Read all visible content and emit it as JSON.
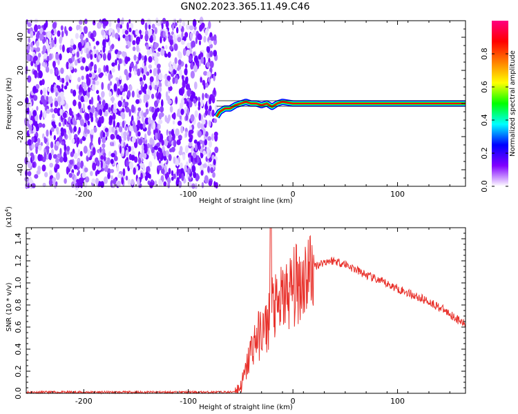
{
  "title": "GN02.2023.365.11.49.C46",
  "chart_data": [
    {
      "type": "heatmap",
      "title": "GN02.2023.365.11.49.C46",
      "xlabel": "Height of straight line (km)",
      "ylabel": "Frequency (Hz)",
      "xlim": [
        -255,
        165
      ],
      "ylim": [
        -50,
        50
      ],
      "xticks": [
        -200,
        -100,
        0,
        100
      ],
      "yticks": [
        -40,
        -20,
        0,
        20,
        40
      ],
      "colorbar": {
        "label": "Normalized spectral amplitude",
        "range": [
          0.0,
          1.0
        ],
        "ticks": [
          0.0,
          0.2,
          0.4,
          0.6,
          0.8
        ],
        "colors": [
          "#ffffff",
          "#8000ff",
          "#0000ff",
          "#00ffff",
          "#00ff00",
          "#ffff00",
          "#ff8000",
          "#ff0000",
          "#ff0080"
        ]
      },
      "noise_region_x": [
        -255,
        -73
      ],
      "signal_line": {
        "y": 0,
        "x_start": -73,
        "x_end": 165,
        "points": [
          [
            -73,
            -8
          ],
          [
            -70,
            -5
          ],
          [
            -65,
            -3
          ],
          [
            -60,
            -3
          ],
          [
            -55,
            -1
          ],
          [
            -50,
            0
          ],
          [
            -45,
            1
          ],
          [
            -40,
            0
          ],
          [
            -35,
            0
          ],
          [
            -30,
            -1
          ],
          [
            -25,
            0
          ],
          [
            -20,
            -2
          ],
          [
            -15,
            0
          ],
          [
            -10,
            1
          ],
          [
            0,
            0
          ],
          [
            165,
            0
          ]
        ]
      }
    },
    {
      "type": "line",
      "xlabel": "Height of straight line (km)",
      "ylabel": "SNR (10 * v/v)",
      "yscale_label": "(x10",
      "yscale_exp": "4",
      "yscale_close": ")",
      "xlim": [
        -255,
        165
      ],
      "ylim": [
        0,
        1.5
      ],
      "xticks": [
        -200,
        -100,
        0,
        100
      ],
      "yticks": [
        0.0,
        0.2,
        0.4,
        0.6,
        0.8,
        1.0,
        1.2,
        1.4
      ],
      "ytick_labels": [
        "0.0",
        "0.2",
        "0.4",
        "0.6",
        "0.8",
        "1.0",
        "1.2",
        "1.4"
      ],
      "series_color": "#e8302a",
      "series": [
        {
          "x": [
            -255,
            -200,
            -150,
            -100,
            -60,
            -55,
            -50,
            -45,
            -40,
            -35,
            -30,
            -25,
            -22,
            -20,
            -15,
            -10,
            -5,
            0,
            5,
            10,
            15,
            20,
            25,
            30,
            35,
            40,
            50,
            60,
            70,
            80,
            90,
            100,
            110,
            120,
            130,
            140,
            150,
            160,
            165
          ],
          "y": [
            0.01,
            0.01,
            0.01,
            0.01,
            0.01,
            0.02,
            0.06,
            0.2,
            0.4,
            0.5,
            0.55,
            0.6,
            0.7,
            0.8,
            0.75,
            0.85,
            0.9,
            0.95,
            1.0,
            1.05,
            1.1,
            1.15,
            1.17,
            1.19,
            1.2,
            1.2,
            1.17,
            1.12,
            1.07,
            1.03,
            0.99,
            0.95,
            0.91,
            0.87,
            0.83,
            0.78,
            0.72,
            0.65,
            0.62
          ]
        }
      ]
    }
  ]
}
